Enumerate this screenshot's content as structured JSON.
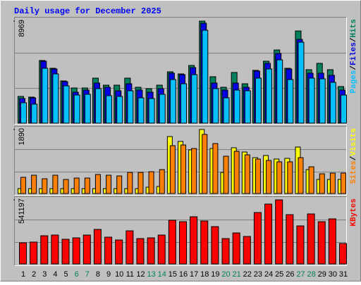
{
  "title": "Daily usage for December 2025",
  "chart_data": [
    {
      "type": "bar",
      "separator": "/",
      "ylim": [
        0,
        9279
      ],
      "yticks": [
        8969
      ],
      "series": [
        {
          "name": "Hits",
          "color": "#00805c",
          "values": [
            2351,
            2289,
            5506,
            4825,
            3712,
            3093,
            3093,
            3959,
            3340,
            3340,
            3959,
            3155,
            3031,
            3340,
            4516,
            4330,
            5073,
            8969,
            4083,
            3155,
            4454,
            3464,
            4640,
            5444,
            6434,
            4825,
            8104,
            4701,
            5258,
            4701,
            3217
          ]
        },
        {
          "name": "Files",
          "color": "#0000e6",
          "values": [
            2165,
            2227,
            5444,
            4763,
            3650,
            2722,
            2907,
            3526,
            3155,
            2846,
            3464,
            2907,
            2722,
            3031,
            4392,
            4268,
            4887,
            8784,
            3526,
            2907,
            3526,
            3155,
            4578,
            5258,
            6124,
            4763,
            7361,
            4392,
            4392,
            4206,
            2907
          ]
        },
        {
          "name": "Pages",
          "color": "#00c0ff",
          "values": [
            1794,
            1670,
            4825,
            4330,
            3279,
            2474,
            2536,
            3031,
            2413,
            2351,
            2846,
            2227,
            2165,
            2536,
            3835,
            3464,
            4268,
            8166,
            3031,
            2227,
            2907,
            2846,
            3959,
            4763,
            5567,
            3835,
            7114,
            3959,
            3897,
            3588,
            2474
          ]
        }
      ]
    },
    {
      "type": "bar",
      "separator": "/",
      "ylim": [
        0,
        1973
      ],
      "yticks": [
        1890
      ],
      "series": [
        {
          "name": "Visits",
          "color": "#ffff00",
          "values": [
            145,
            145,
            145,
            145,
            145,
            145,
            145,
            145,
            145,
            145,
            145,
            145,
            187,
            208,
            1682,
            1537,
            1288,
            1890,
            1329,
            623,
            1350,
            1225,
            1059,
            1122,
            1018,
            1038,
            1371,
            706,
            415,
            415,
            415
          ]
        },
        {
          "name": "Sites",
          "color": "#ff8000",
          "values": [
            478,
            540,
            436,
            540,
            415,
            457,
            457,
            561,
            540,
            519,
            623,
            623,
            644,
            706,
            1412,
            1433,
            1329,
            1745,
            1475,
            1101,
            1246,
            1142,
            1018,
            976,
            935,
            935,
            1059,
            789,
            582,
            602,
            602
          ]
        }
      ]
    },
    {
      "type": "bar",
      "ylim": [
        0,
        564965
      ],
      "yticks": [
        541197
      ],
      "categories": [
        "1",
        "2",
        "3",
        "4",
        "5",
        "6",
        "7",
        "8",
        "9",
        "10",
        "11",
        "12",
        "13",
        "14",
        "15",
        "16",
        "17",
        "18",
        "19",
        "20",
        "21",
        "22",
        "23",
        "24",
        "25",
        "26",
        "27",
        "28",
        "29",
        "30",
        "31"
      ],
      "category_colors": [
        "#000000",
        "#000000",
        "#000000",
        "#000000",
        "#000000",
        "#00805c",
        "#00805c",
        "#000000",
        "#000000",
        "#000000",
        "#000000",
        "#000000",
        "#00805c",
        "#00805c",
        "#000000",
        "#000000",
        "#000000",
        "#000000",
        "#000000",
        "#00805c",
        "#00805c",
        "#000000",
        "#000000",
        "#000000",
        "#000000",
        "#000000",
        "#00805c",
        "#00805c",
        "#000000",
        "#000000",
        "#000000"
      ],
      "series": [
        {
          "name": "KBytes",
          "color": "#ff0000",
          "values": [
            178410,
            184357,
            237880,
            243827,
            208145,
            220039,
            243827,
            291403,
            225986,
            202198,
            279509,
            214092,
            220039,
            243827,
            368714,
            356820,
            398449,
            362767,
            315191,
            214092,
            261668,
            231933,
            434131,
            505495,
            541197,
            416290,
            321138,
            422237,
            356820,
            380608,
            172463
          ]
        }
      ]
    }
  ]
}
